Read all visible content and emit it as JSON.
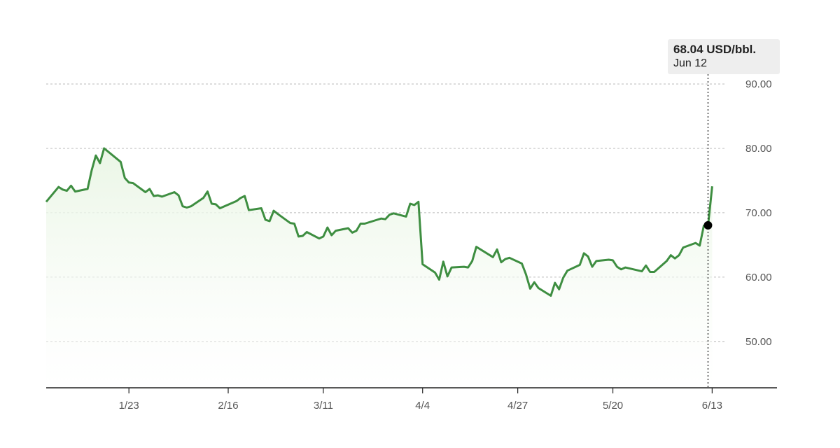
{
  "chart_data": {
    "type": "area",
    "title": "",
    "xlabel": "",
    "ylabel": "",
    "x_tick_labels": [
      "1/23",
      "2/16",
      "3/11",
      "4/4",
      "4/27",
      "5/20",
      "6/13"
    ],
    "y_ticks": [
      50,
      60,
      70,
      80,
      90
    ],
    "y_tick_labels": [
      "50.00",
      "60.00",
      "70.00",
      "80.00",
      "90.00"
    ],
    "ylim": [
      42.8,
      90
    ],
    "xlim": [
      "2025-01-03",
      "2025-06-17"
    ],
    "grid": true,
    "line_color": "#3e8e41",
    "fill_color": "#e8f5e3",
    "series": [
      {
        "x": [
          "2025-01-03",
          "2025-01-06",
          "2025-01-07",
          "2025-01-08",
          "2025-01-09",
          "2025-01-10",
          "2025-01-13",
          "2025-01-14",
          "2025-01-15",
          "2025-01-16",
          "2025-01-17",
          "2025-01-21",
          "2025-01-22",
          "2025-01-23",
          "2025-01-24",
          "2025-01-27",
          "2025-01-28",
          "2025-01-29",
          "2025-01-30",
          "2025-01-31",
          "2025-02-03",
          "2025-02-04",
          "2025-02-05",
          "2025-02-06",
          "2025-02-07",
          "2025-02-10",
          "2025-02-11",
          "2025-02-12",
          "2025-02-13",
          "2025-02-14",
          "2025-02-18",
          "2025-02-19",
          "2025-02-20",
          "2025-02-21",
          "2025-02-24",
          "2025-02-25",
          "2025-02-26",
          "2025-02-27",
          "2025-02-28",
          "2025-03-03",
          "2025-03-04",
          "2025-03-05",
          "2025-03-06",
          "2025-03-07",
          "2025-03-10",
          "2025-03-11",
          "2025-03-12",
          "2025-03-13",
          "2025-03-14",
          "2025-03-17",
          "2025-03-18",
          "2025-03-19",
          "2025-03-20",
          "2025-03-21",
          "2025-03-24",
          "2025-03-25",
          "2025-03-26",
          "2025-03-27",
          "2025-03-28",
          "2025-03-31",
          "2025-04-01",
          "2025-04-02",
          "2025-04-03",
          "2025-04-04",
          "2025-04-07",
          "2025-04-08",
          "2025-04-09",
          "2025-04-10",
          "2025-04-11",
          "2025-04-14",
          "2025-04-15",
          "2025-04-16",
          "2025-04-17",
          "2025-04-21",
          "2025-04-22",
          "2025-04-23",
          "2025-04-24",
          "2025-04-25",
          "2025-04-28",
          "2025-04-29",
          "2025-04-30",
          "2025-05-01",
          "2025-05-02",
          "2025-05-05",
          "2025-05-06",
          "2025-05-07",
          "2025-05-08",
          "2025-05-09",
          "2025-05-12",
          "2025-05-13",
          "2025-05-14",
          "2025-05-15",
          "2025-05-16",
          "2025-05-19",
          "2025-05-20",
          "2025-05-21",
          "2025-05-22",
          "2025-05-23",
          "2025-05-27",
          "2025-05-28",
          "2025-05-29",
          "2025-05-30",
          "2025-06-02",
          "2025-06-03",
          "2025-06-04",
          "2025-06-05",
          "2025-06-06",
          "2025-06-09",
          "2025-06-10",
          "2025-06-11",
          "2025-06-12",
          "2025-06-13"
        ],
        "values": [
          71.7,
          74.0,
          73.6,
          73.4,
          74.2,
          73.3,
          73.7,
          76.6,
          78.9,
          77.7,
          80.0,
          77.9,
          75.4,
          74.7,
          74.6,
          73.2,
          73.7,
          72.6,
          72.7,
          72.5,
          73.2,
          72.7,
          71.0,
          70.8,
          71.0,
          72.3,
          73.3,
          71.4,
          71.3,
          70.7,
          71.8,
          72.3,
          72.6,
          70.4,
          70.7,
          68.9,
          68.7,
          70.3,
          69.8,
          68.4,
          68.3,
          66.3,
          66.4,
          67.0,
          66.0,
          66.3,
          67.7,
          66.5,
          67.2,
          67.6,
          66.9,
          67.2,
          68.3,
          68.3,
          68.9,
          69.1,
          69.0,
          69.7,
          69.9,
          69.4,
          71.4,
          71.2,
          71.7,
          62.0,
          60.7,
          59.6,
          62.4,
          60.1,
          61.5,
          61.6,
          61.5,
          62.5,
          64.7,
          63.1,
          64.3,
          62.3,
          62.8,
          63.0,
          62.1,
          60.4,
          58.2,
          59.2,
          58.3,
          57.1,
          59.1,
          58.1,
          59.9,
          61.0,
          61.9,
          63.7,
          63.2,
          61.6,
          62.5,
          62.7,
          62.6,
          61.6,
          61.2,
          61.5,
          60.9,
          61.8,
          60.8,
          60.8,
          62.5,
          63.4,
          62.9,
          63.4,
          64.6,
          65.3,
          64.9,
          68.0,
          68.0,
          74.1
        ]
      }
    ],
    "tooltip": {
      "value_label": "68.04 USD/bbl.",
      "date_label": "Jun 12",
      "x": "2025-06-12",
      "y": 68.04
    }
  }
}
